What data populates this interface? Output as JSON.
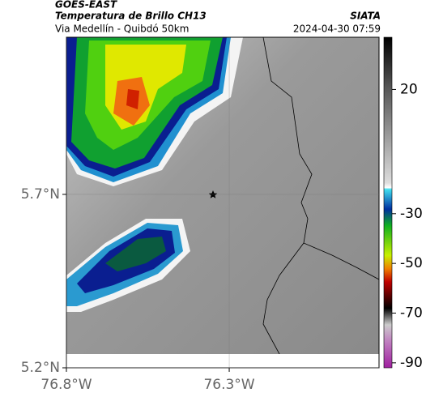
{
  "header": {
    "source": "GOES-EAST",
    "title": "Temperatura de Brillo CH13",
    "agency": "SIATA",
    "subtitle": "Via Medellín - Quibdó 50km",
    "datetime": "2024-04-30 07:59"
  },
  "map": {
    "lon_range": [
      -76.8,
      -75.84
    ],
    "lat_range": [
      5.2,
      6.153
    ],
    "xticks": [
      {
        "value": -76.8,
        "label": "76.8°W"
      },
      {
        "value": -76.3,
        "label": "76.3°W"
      }
    ],
    "yticks": [
      {
        "value": 5.7,
        "label": "5.7°N"
      },
      {
        "value": 5.2,
        "label": "5.2°N"
      }
    ]
  },
  "colorbar": {
    "range": [
      41,
      -92
    ],
    "ticks": [
      20,
      -30,
      -50,
      -70,
      -90
    ]
  }
}
